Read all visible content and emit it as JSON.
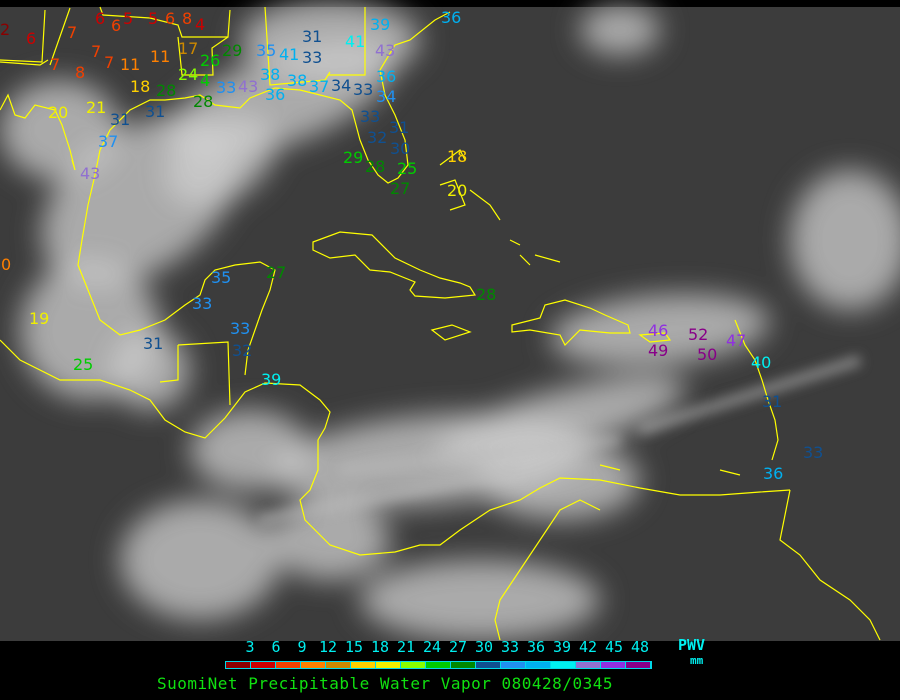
{
  "title": "SuomiNet Precipitable Water Vapor 080428/0345",
  "legend": {
    "unit_label": "PWV",
    "unit": "mm",
    "ticks": [
      "3",
      "6",
      "9",
      "12",
      "15",
      "18",
      "21",
      "24",
      "27",
      "30",
      "33",
      "36",
      "39",
      "42",
      "45",
      "48"
    ],
    "colors": [
      "#8b0000",
      "#cc0000",
      "#f04000",
      "#ff8000",
      "#cc8800",
      "#ffd000",
      "#f0f000",
      "#88ff00",
      "#00cc00",
      "#008800",
      "#105090",
      "#2090f0",
      "#00b0f0",
      "#00f0f0",
      "#9070d0",
      "#9030e0",
      "#880088"
    ]
  },
  "colors": {
    "coastline": "#ffff00",
    "background": "#3c3c3c",
    "clouds": "#d8d8d8"
  },
  "stations": [
    "2",
    "6",
    "5",
    "5",
    "6",
    "8",
    "4",
    "6",
    "7",
    "6",
    "7",
    "7",
    "8",
    "7",
    "11",
    "11",
    "17",
    "18",
    "20",
    "21",
    "31",
    "31",
    "37",
    "43",
    "26",
    "29",
    "24",
    "4",
    "28",
    "28",
    "33",
    "43",
    "35",
    "41",
    "31",
    "33",
    "38",
    "36",
    "38",
    "37",
    "34",
    "33",
    "34",
    "33",
    "32",
    "31",
    "30",
    "25",
    "27",
    "28",
    "29",
    "39",
    "41",
    "43",
    "36",
    "36",
    "18",
    "20",
    "0",
    "19",
    "25",
    "31",
    "35",
    "33",
    "27",
    "33",
    "32",
    "39",
    "28",
    "46",
    "49",
    "52",
    "50",
    "47",
    "40",
    "31",
    "33",
    "36"
  ]
}
